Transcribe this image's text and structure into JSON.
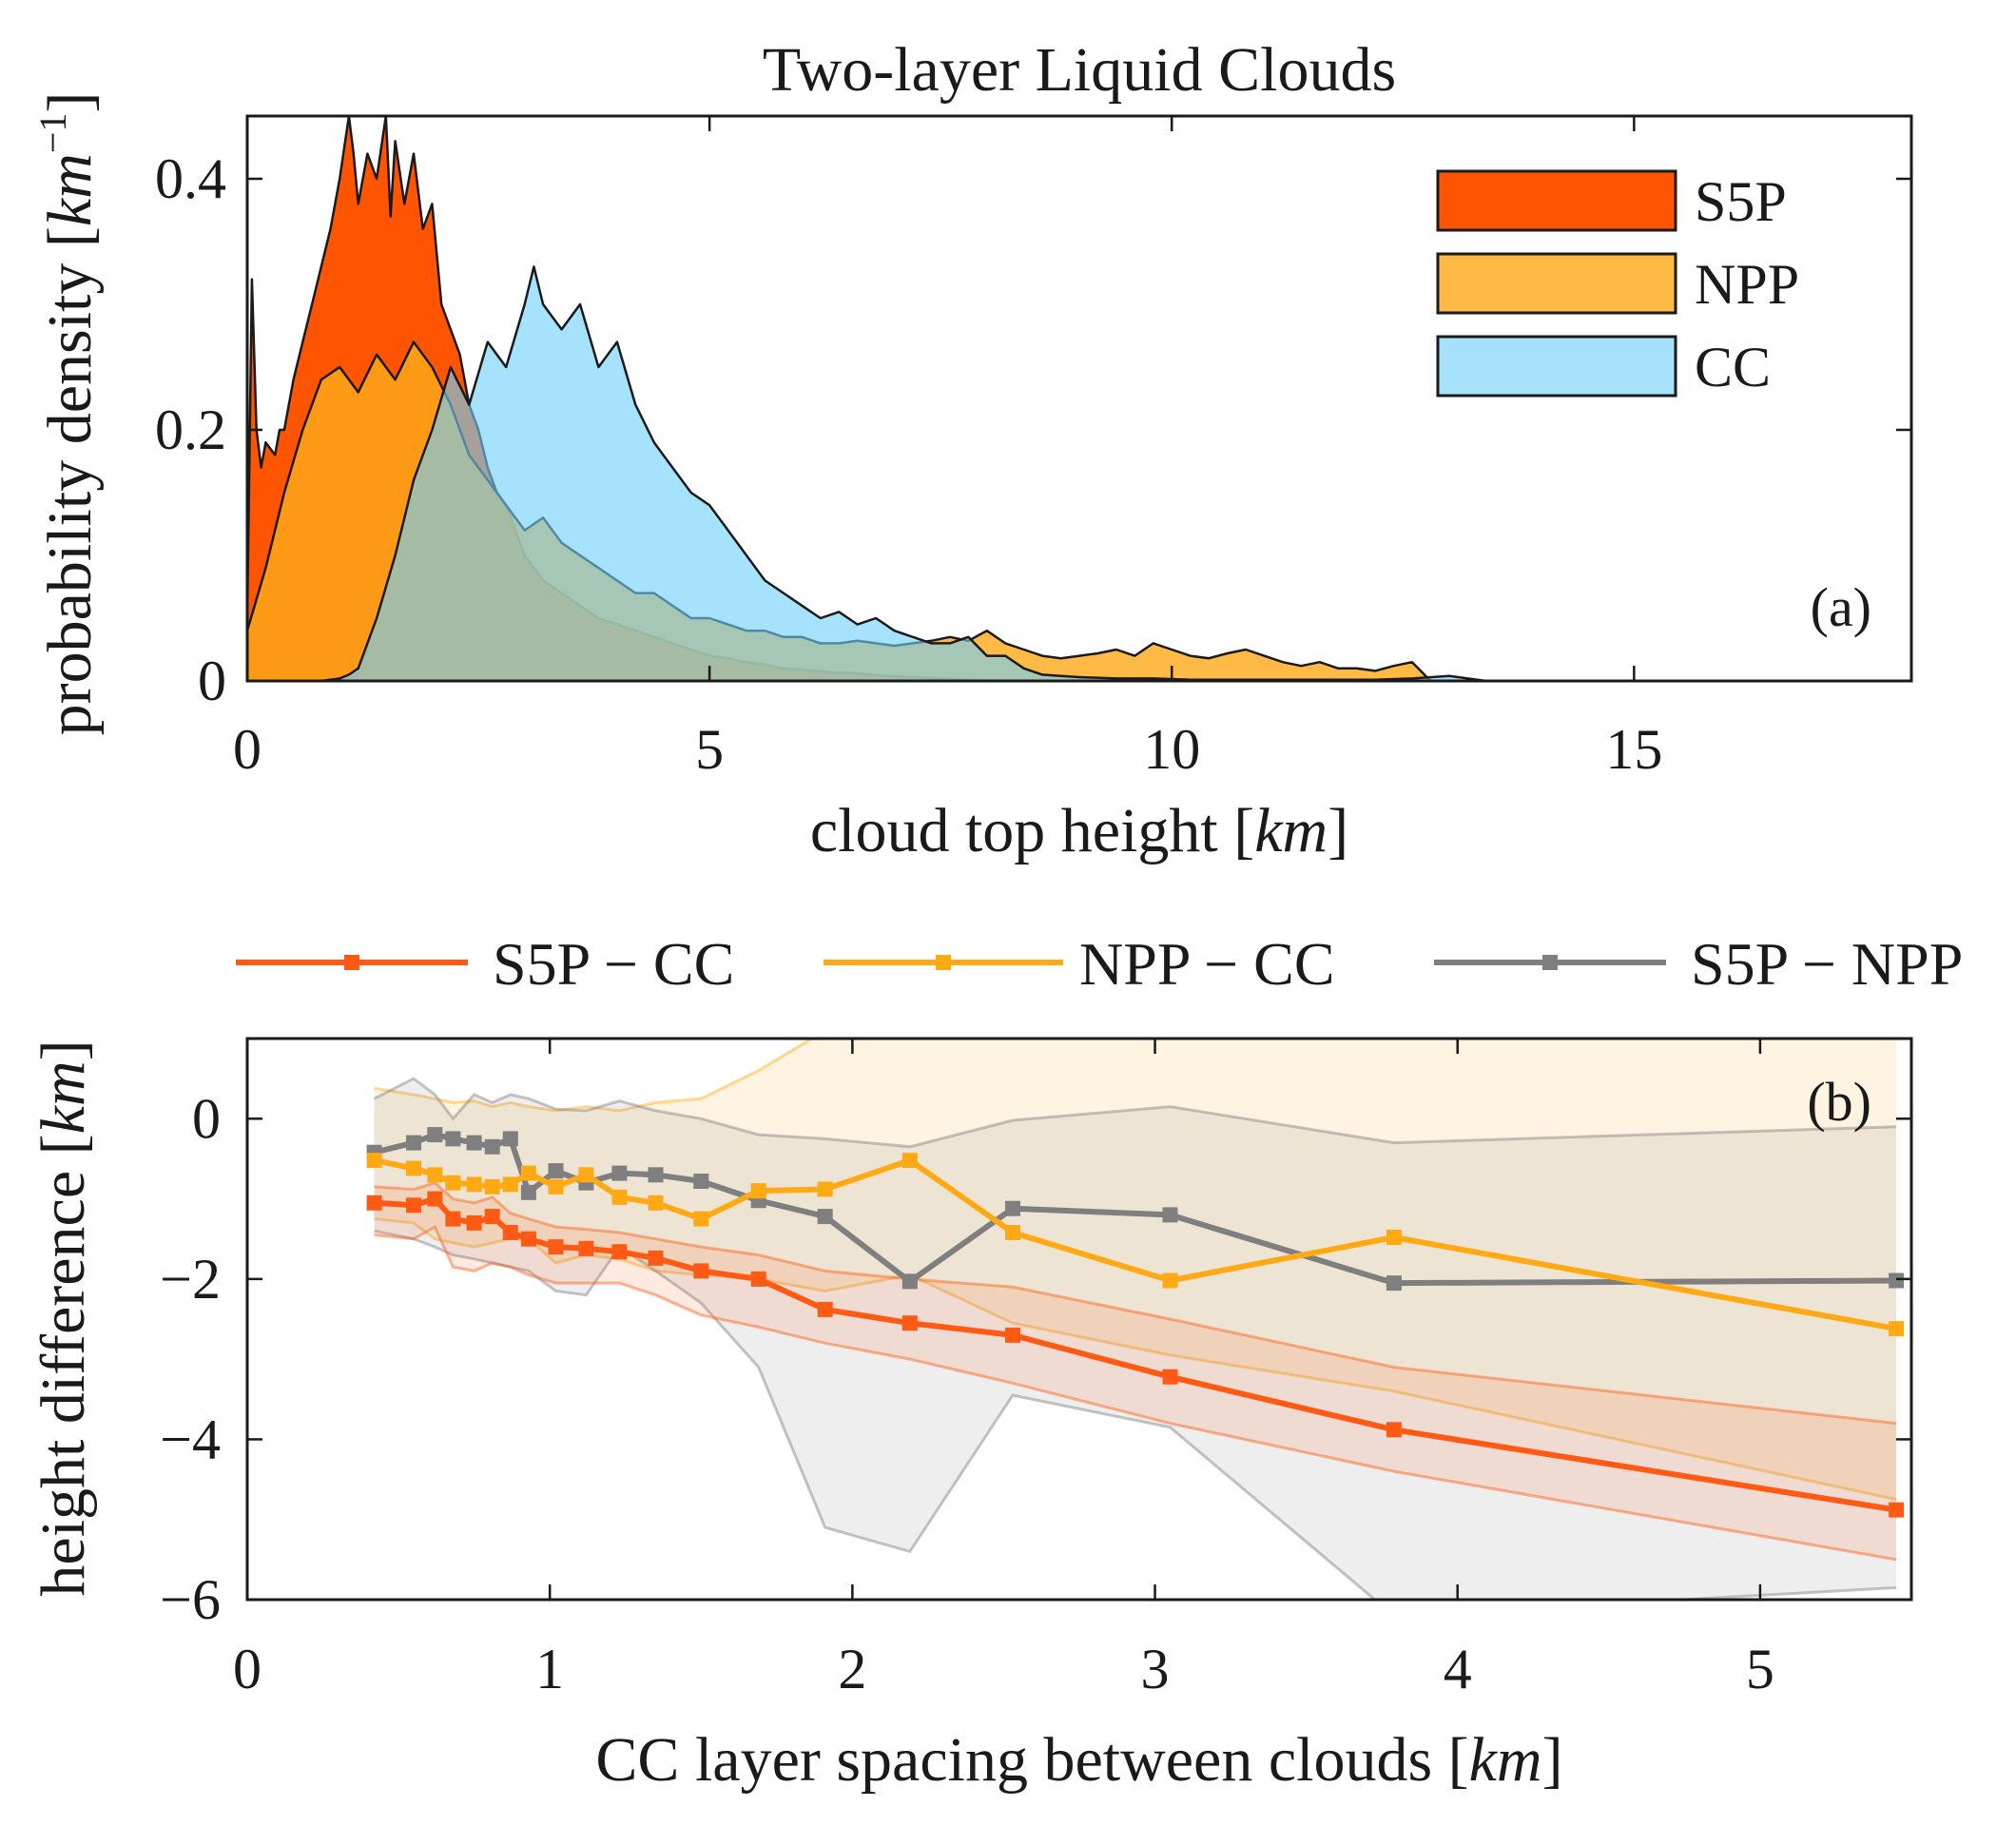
{
  "chart_data": [
    {
      "panel": "(a)",
      "type": "area",
      "title": "Two-layer Liquid Clouds",
      "xlabel_text": "cloud  top  height  [",
      "xlabel_unit": "km",
      "xlabel_close": "]",
      "ylabel_text": "probability  density [",
      "ylabel_unit": "km",
      "ylabel_sup": "−1",
      "ylabel_close": "]",
      "xlim": [
        0,
        18
      ],
      "ylim": [
        0,
        0.45
      ],
      "xticks": [
        0,
        5,
        10,
        15
      ],
      "xtick_labels": [
        "0",
        "5",
        "10",
        "15"
      ],
      "yticks": [
        0,
        0.2,
        0.4
      ],
      "ytick_labels": [
        "0",
        "0.2",
        "0.4"
      ],
      "legend_position": "top-right",
      "series": [
        {
          "name": "S5P",
          "color": "#ff5500",
          "opacity": 1.0,
          "x": [
            0,
            0.05,
            0.1,
            0.15,
            0.2,
            0.3,
            0.35,
            0.4,
            0.5,
            0.6,
            0.7,
            0.8,
            0.9,
            1.0,
            1.1,
            1.15,
            1.2,
            1.3,
            1.4,
            1.5,
            1.55,
            1.6,
            1.7,
            1.8,
            1.9,
            2.0,
            2.1,
            2.2,
            2.3,
            2.4,
            2.5,
            2.6,
            2.7,
            2.8,
            2.9,
            3.0,
            3.1,
            3.2,
            3.4,
            3.6,
            3.8,
            4.0,
            4.2,
            4.4,
            4.6,
            4.8,
            5.0,
            5.2,
            5.4,
            5.6,
            5.8,
            6.0,
            6.3,
            6.6,
            6.9,
            7.2,
            7.5,
            7.8,
            8.2,
            8.6,
            9.0
          ],
          "values": [
            0.05,
            0.32,
            0.2,
            0.17,
            0.19,
            0.18,
            0.2,
            0.2,
            0.24,
            0.27,
            0.3,
            0.33,
            0.36,
            0.4,
            0.45,
            0.42,
            0.38,
            0.42,
            0.4,
            0.45,
            0.37,
            0.43,
            0.38,
            0.42,
            0.36,
            0.38,
            0.3,
            0.28,
            0.26,
            0.22,
            0.2,
            0.17,
            0.15,
            0.14,
            0.12,
            0.1,
            0.09,
            0.08,
            0.07,
            0.06,
            0.05,
            0.045,
            0.04,
            0.035,
            0.03,
            0.025,
            0.02,
            0.018,
            0.015,
            0.013,
            0.01,
            0.009,
            0.007,
            0.006,
            0.004,
            0.003,
            0.002,
            0.001,
            0.0,
            0.0,
            0.0
          ]
        },
        {
          "name": "NPP",
          "color": "#ffaa1c",
          "opacity": 0.82,
          "x": [
            0,
            0.2,
            0.4,
            0.6,
            0.8,
            1.0,
            1.2,
            1.4,
            1.6,
            1.8,
            2.0,
            2.2,
            2.4,
            2.6,
            2.8,
            3.0,
            3.2,
            3.4,
            3.6,
            3.8,
            4.0,
            4.2,
            4.4,
            4.6,
            4.8,
            5.0,
            5.2,
            5.4,
            5.6,
            5.8,
            6.0,
            6.2,
            6.4,
            6.6,
            6.8,
            7.0,
            7.2,
            7.4,
            7.6,
            7.8,
            8.0,
            8.2,
            8.4,
            8.6,
            8.8,
            9.0,
            9.2,
            9.4,
            9.6,
            9.8,
            10.0,
            10.2,
            10.4,
            10.6,
            10.8,
            11.0,
            11.2,
            11.4,
            11.6,
            11.8,
            12.0,
            12.2,
            12.4,
            12.6,
            12.8,
            13.0
          ],
          "values": [
            0.04,
            0.09,
            0.15,
            0.2,
            0.24,
            0.25,
            0.23,
            0.26,
            0.24,
            0.27,
            0.25,
            0.22,
            0.18,
            0.16,
            0.14,
            0.12,
            0.13,
            0.11,
            0.1,
            0.09,
            0.08,
            0.07,
            0.07,
            0.06,
            0.05,
            0.05,
            0.045,
            0.04,
            0.04,
            0.035,
            0.035,
            0.03,
            0.03,
            0.032,
            0.03,
            0.028,
            0.03,
            0.032,
            0.035,
            0.032,
            0.04,
            0.03,
            0.025,
            0.02,
            0.018,
            0.02,
            0.022,
            0.025,
            0.02,
            0.03,
            0.025,
            0.02,
            0.018,
            0.022,
            0.025,
            0.02,
            0.015,
            0.012,
            0.015,
            0.01,
            0.01,
            0.008,
            0.012,
            0.015,
            0.0,
            0.0
          ]
        },
        {
          "name": "CC",
          "color": "#70d0fa",
          "opacity": 0.62,
          "x": [
            0,
            0.8,
            1.0,
            1.1,
            1.2,
            1.4,
            1.6,
            1.8,
            2.0,
            2.2,
            2.4,
            2.6,
            2.8,
            3.0,
            3.1,
            3.2,
            3.4,
            3.6,
            3.8,
            4.0,
            4.2,
            4.4,
            4.6,
            4.8,
            5.0,
            5.2,
            5.4,
            5.6,
            5.8,
            6.0,
            6.2,
            6.4,
            6.6,
            6.8,
            7.0,
            7.2,
            7.4,
            7.6,
            7.8,
            8.0,
            8.2,
            8.4,
            8.6,
            8.8,
            9.0,
            9.4,
            9.8,
            10.2,
            10.6,
            11.0,
            11.4,
            11.8,
            12.2,
            12.6,
            13.0,
            13.2,
            13.4
          ],
          "values": [
            0,
            0,
            0.002,
            0.005,
            0.01,
            0.05,
            0.1,
            0.16,
            0.2,
            0.25,
            0.22,
            0.27,
            0.25,
            0.3,
            0.33,
            0.3,
            0.28,
            0.3,
            0.25,
            0.27,
            0.22,
            0.19,
            0.17,
            0.15,
            0.14,
            0.12,
            0.1,
            0.08,
            0.07,
            0.06,
            0.05,
            0.055,
            0.045,
            0.05,
            0.04,
            0.035,
            0.03,
            0.03,
            0.035,
            0.02,
            0.02,
            0.01,
            0.005,
            0.004,
            0.003,
            0.002,
            0.002,
            0.001,
            0.001,
            0.001,
            0.001,
            0.001,
            0.001,
            0.002,
            0.004,
            0.002,
            0.0
          ]
        }
      ],
      "annotation": "(a)"
    },
    {
      "panel": "(b)",
      "type": "line",
      "xlabel_text": "CC  layer  spacing  between  clouds  [",
      "xlabel_unit": "km",
      "xlabel_close": "]",
      "ylabel_text": "height difference [",
      "ylabel_unit": "km",
      "ylabel_close": "]",
      "xlim": [
        0,
        5.5
      ],
      "ylim": [
        -6,
        1
      ],
      "xticks": [
        0,
        1,
        2,
        3,
        4,
        5
      ],
      "xtick_labels": [
        "0",
        "1",
        "2",
        "3",
        "4",
        "5"
      ],
      "yticks": [
        0,
        -2,
        -4,
        -6
      ],
      "ytick_labels": [
        "0",
        "−2",
        "−4",
        "−6"
      ],
      "legend_position": "top (outside)",
      "x": [
        0.42,
        0.55,
        0.62,
        0.68,
        0.75,
        0.81,
        0.87,
        0.93,
        1.02,
        1.12,
        1.23,
        1.35,
        1.5,
        1.69,
        1.91,
        2.19,
        2.53,
        3.05,
        3.79,
        5.45
      ],
      "series": [
        {
          "name": "S5P − CC",
          "color": "#ff5a14",
          "values": [
            -1.05,
            -1.08,
            -1.0,
            -1.25,
            -1.3,
            -1.22,
            -1.42,
            -1.5,
            -1.6,
            -1.62,
            -1.66,
            -1.74,
            -1.9,
            -2.0,
            -2.38,
            -2.55,
            -2.7,
            -3.22,
            -3.88,
            -4.88
          ],
          "band_upper": [
            -0.85,
            -0.88,
            -0.8,
            -1.0,
            -1.05,
            -0.98,
            -1.18,
            -1.25,
            -1.35,
            -1.38,
            -1.42,
            -1.5,
            -1.6,
            -1.7,
            -1.9,
            -2.0,
            -2.1,
            -2.5,
            -3.1,
            -3.8
          ],
          "band_lower": [
            -1.45,
            -1.5,
            -1.35,
            -1.85,
            -1.9,
            -1.8,
            -1.85,
            -1.95,
            -2.05,
            -2.05,
            -2.05,
            -2.2,
            -2.45,
            -2.6,
            -2.8,
            -3.0,
            -3.3,
            -3.8,
            -4.4,
            -5.5
          ]
        },
        {
          "name": "NPP − CC",
          "color": "#ffaa14",
          "values": [
            -0.52,
            -0.62,
            -0.7,
            -0.8,
            -0.82,
            -0.85,
            -0.82,
            -0.68,
            -0.85,
            -0.7,
            -0.98,
            -1.05,
            -1.25,
            -0.9,
            -0.88,
            -0.52,
            -1.42,
            -2.02,
            -1.48,
            -2.62
          ],
          "band_upper": [
            0.38,
            0.3,
            0.25,
            0.2,
            0.22,
            0.15,
            0.2,
            0.15,
            0.1,
            0.15,
            0.1,
            0.2,
            0.25,
            0.6,
            1.1,
            1.1,
            1.1,
            1.0,
            1.1,
            1.1
          ],
          "band_lower": [
            -1.25,
            -1.3,
            -1.5,
            -1.55,
            -1.6,
            -1.55,
            -1.5,
            -1.5,
            -1.8,
            -1.7,
            -1.75,
            -1.9,
            -1.95,
            -2.0,
            -2.15,
            -1.95,
            -2.55,
            -2.95,
            -3.4,
            -4.75
          ]
        },
        {
          "name": "S5P − NPP",
          "color": "#7f7f7f",
          "values": [
            -0.42,
            -0.3,
            -0.2,
            -0.25,
            -0.3,
            -0.35,
            -0.25,
            -0.92,
            -0.65,
            -0.8,
            -0.68,
            -0.7,
            -0.78,
            -1.02,
            -1.22,
            -2.03,
            -1.12,
            -1.2,
            -2.05,
            -2.02
          ],
          "band_upper": [
            0.25,
            0.5,
            0.3,
            0.0,
            0.3,
            0.2,
            0.3,
            0.25,
            0.12,
            0.1,
            0.22,
            0.1,
            0.0,
            -0.2,
            -0.25,
            -0.35,
            -0.02,
            0.15,
            -0.3,
            -0.1
          ],
          "band_lower": [
            -1.4,
            -1.5,
            -1.6,
            -1.7,
            -1.75,
            -1.8,
            -1.85,
            -1.9,
            -2.15,
            -2.2,
            -1.6,
            -1.9,
            -2.3,
            -3.1,
            -5.1,
            -5.4,
            -3.45,
            -3.85,
            -6.2,
            -5.85
          ]
        }
      ],
      "annotation": "(b)"
    }
  ]
}
